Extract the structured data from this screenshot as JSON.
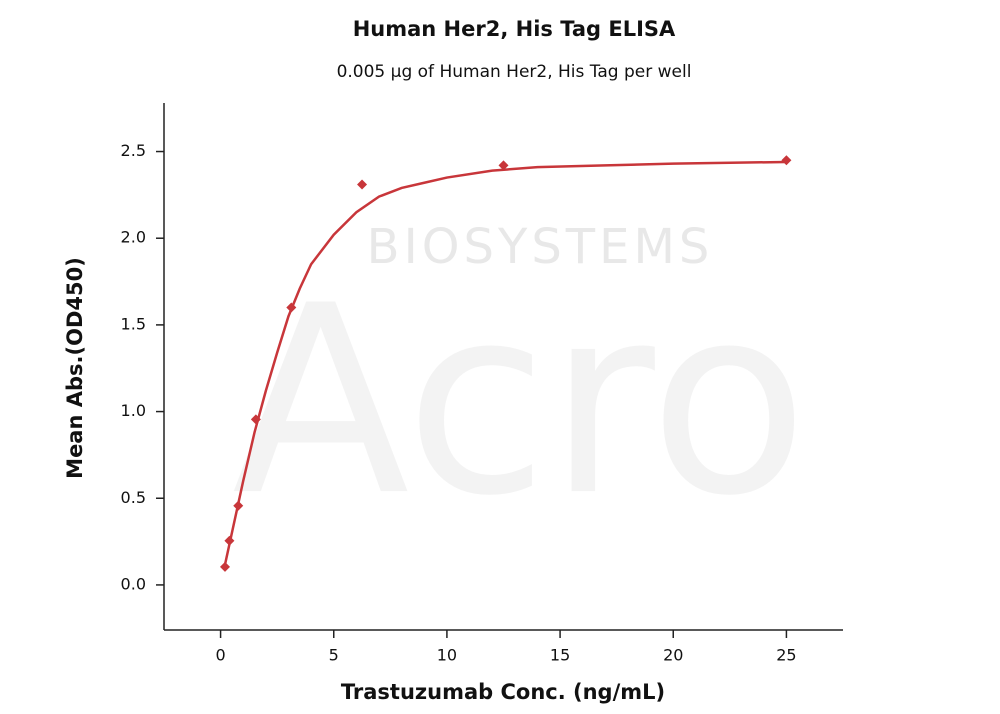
{
  "chart_data": {
    "type": "scatter",
    "title": "Human Her2, His Tag ELISA",
    "subtitle": "0.005 µg of Human Her2, His Tag per well",
    "x_label": "Trastuzumab Conc. (ng/mL)",
    "y_label": "Mean Abs.(OD450)",
    "watermark": [
      "BIOSYSTEMS",
      "Acro"
    ],
    "xlim": [
      -2.5,
      27.5
    ],
    "ylim": [
      -0.26,
      2.78
    ],
    "xticks": [
      0,
      5,
      10,
      15,
      20,
      25
    ],
    "yticks": [
      {
        "value": 0,
        "label": "0.0"
      },
      0.5,
      {
        "value": 1,
        "label": "1.0"
      },
      1.5,
      {
        "value": 2,
        "label": "2.0"
      },
      2.5
    ],
    "series": [
      {
        "mode": "markers",
        "color": "#c8363a",
        "x": [
          0.195,
          0.39,
          0.78,
          1.56,
          3.125,
          6.25,
          12.5,
          25
        ],
        "values": [
          0.104,
          0.255,
          0.457,
          0.955,
          1.6,
          2.31,
          2.42,
          2.45
        ]
      },
      {
        "mode": "line",
        "color": "#c8363a",
        "x": [
          0.2,
          0.5,
          1,
          1.5,
          2,
          2.5,
          3,
          3.5,
          4,
          5,
          6,
          7,
          8,
          9,
          10,
          12,
          14,
          17,
          20,
          25
        ],
        "values": [
          0.12,
          0.3,
          0.6,
          0.88,
          1.12,
          1.34,
          1.55,
          1.71,
          1.85,
          2.02,
          2.15,
          2.24,
          2.29,
          2.32,
          2.35,
          2.39,
          2.41,
          2.42,
          2.43,
          2.44
        ]
      }
    ]
  }
}
